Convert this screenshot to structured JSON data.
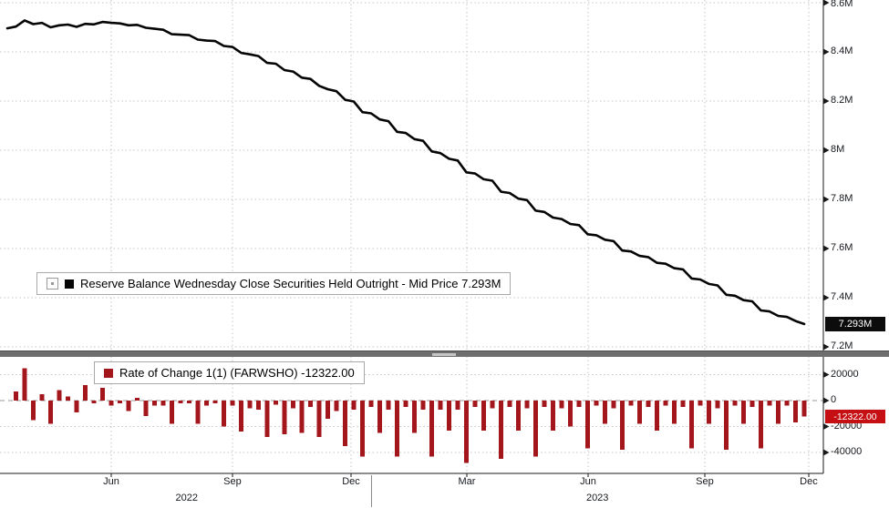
{
  "colors": {
    "line": "#050505",
    "bar": "#a3161b",
    "badge_value_bg": "#0c0c0c",
    "badge_roc_bg": "#c60f13",
    "grid": "#c6c6c6",
    "zero_line": "#9a9a9a",
    "axis": "#1a1a1a",
    "text": "#15181d"
  },
  "legend_top": {
    "label": "Reserve Balance Wednesday Close Securities Held Outright - Mid Price 7.293M"
  },
  "legend_bottom": {
    "label": "Rate of Change 1(1) (FARWSHO) -12322.00"
  },
  "badges": {
    "price": "7.293M",
    "roc": "-12322.00"
  },
  "y_axis_top": {
    "ticks": [
      {
        "label": "8.6M",
        "value": 8.6
      },
      {
        "label": "8.4M",
        "value": 8.4
      },
      {
        "label": "8.2M",
        "value": 8.2
      },
      {
        "label": "8M",
        "value": 8.0
      },
      {
        "label": "7.8M",
        "value": 7.8
      },
      {
        "label": "7.6M",
        "value": 7.6
      },
      {
        "label": "7.4M",
        "value": 7.4
      },
      {
        "label": "7.2M",
        "value": 7.2
      }
    ]
  },
  "y_axis_bottom": {
    "ticks": [
      {
        "label": "20000",
        "value": 20000
      },
      {
        "label": "0",
        "value": 0
      },
      {
        "label": "-20000",
        "value": -20000
      },
      {
        "label": "-40000",
        "value": -40000
      }
    ]
  },
  "x_axis": {
    "months": [
      {
        "label": "Jun",
        "pos": 0.1251
      },
      {
        "label": "Sep",
        "pos": 0.2615
      },
      {
        "label": "Dec",
        "pos": 0.3949
      },
      {
        "label": "Mar",
        "pos": 0.5251
      },
      {
        "label": "Jun",
        "pos": 0.6615
      },
      {
        "label": "Sep",
        "pos": 0.7928
      },
      {
        "label": "Dec",
        "pos": 0.9097
      }
    ],
    "years": [
      {
        "label": "2022",
        "pos": 0.21
      },
      {
        "label": "2023",
        "pos": 0.672
      }
    ],
    "year_divider_pos": 0.418
  },
  "chart_data": [
    {
      "type": "line",
      "title": "Reserve Balance Wednesday Close Securities Held Outright - Mid Price",
      "y_unit": "M",
      "last_label": "7.293M",
      "ylim": [
        7.2,
        8.6
      ],
      "grid": true,
      "x_ticks": [
        "Jun",
        "Sep",
        "Dec",
        "Mar",
        "Jun",
        "Sep",
        "Dec"
      ],
      "x_years": [
        "2022",
        "2023"
      ],
      "values": [
        8.496,
        8.503,
        8.528,
        8.513,
        8.518,
        8.5,
        8.508,
        8.511,
        8.502,
        8.514,
        8.512,
        8.522,
        8.518,
        8.516,
        8.508,
        8.51,
        8.498,
        8.494,
        8.49,
        8.472,
        8.47,
        8.468,
        8.45,
        8.446,
        8.444,
        8.424,
        8.42,
        8.396,
        8.39,
        8.383,
        8.355,
        8.352,
        8.326,
        8.32,
        8.295,
        8.29,
        8.262,
        8.248,
        8.24,
        8.205,
        8.198,
        8.155,
        8.15,
        8.125,
        8.118,
        8.075,
        8.07,
        8.045,
        8.038,
        7.995,
        7.988,
        7.965,
        7.958,
        7.91,
        7.905,
        7.882,
        7.876,
        7.831,
        7.826,
        7.803,
        7.797,
        7.754,
        7.749,
        7.726,
        7.72,
        7.7,
        7.695,
        7.658,
        7.654,
        7.636,
        7.63,
        7.592,
        7.588,
        7.57,
        7.565,
        7.542,
        7.538,
        7.52,
        7.515,
        7.478,
        7.474,
        7.456,
        7.45,
        7.412,
        7.408,
        7.39,
        7.385,
        7.348,
        7.344,
        7.326,
        7.322,
        7.305322,
        7.293
      ]
    },
    {
      "type": "bar",
      "title": "Rate of Change 1(1) (FARWSHO)",
      "last_value": -12322.0,
      "ylim": [
        -52000,
        30000
      ],
      "yticks": [
        20000,
        0,
        -20000,
        -40000
      ],
      "grid": true,
      "values": [
        7000,
        25000,
        -15000,
        5000,
        -18000,
        8000,
        3000,
        -9000,
        12000,
        -2000,
        10000,
        -4000,
        -2000,
        -8000,
        2000,
        -12000,
        -4000,
        -4000,
        -18000,
        -2000,
        -2000,
        -18000,
        -4000,
        -2000,
        -20000,
        -4000,
        -24000,
        -6000,
        -7000,
        -28000,
        -3000,
        -26000,
        -6000,
        -25000,
        -5000,
        -28000,
        -14000,
        -8000,
        -35000,
        -7000,
        -43000,
        -5000,
        -25000,
        -7000,
        -43000,
        -5000,
        -25000,
        -7000,
        -43000,
        -7000,
        -23000,
        -7000,
        -48000,
        -5000,
        -23000,
        -6000,
        -45000,
        -5000,
        -23000,
        -6000,
        -43000,
        -5000,
        -23000,
        -6000,
        -20000,
        -5000,
        -37000,
        -4000,
        -18000,
        -6000,
        -38000,
        -4000,
        -18000,
        -5000,
        -23000,
        -4000,
        -18000,
        -5000,
        -37000,
        -4000,
        -18000,
        -6000,
        -38000,
        -4000,
        -18000,
        -5000,
        -37000,
        -4000,
        -18000,
        -4000,
        -16678,
        -12322
      ]
    }
  ]
}
